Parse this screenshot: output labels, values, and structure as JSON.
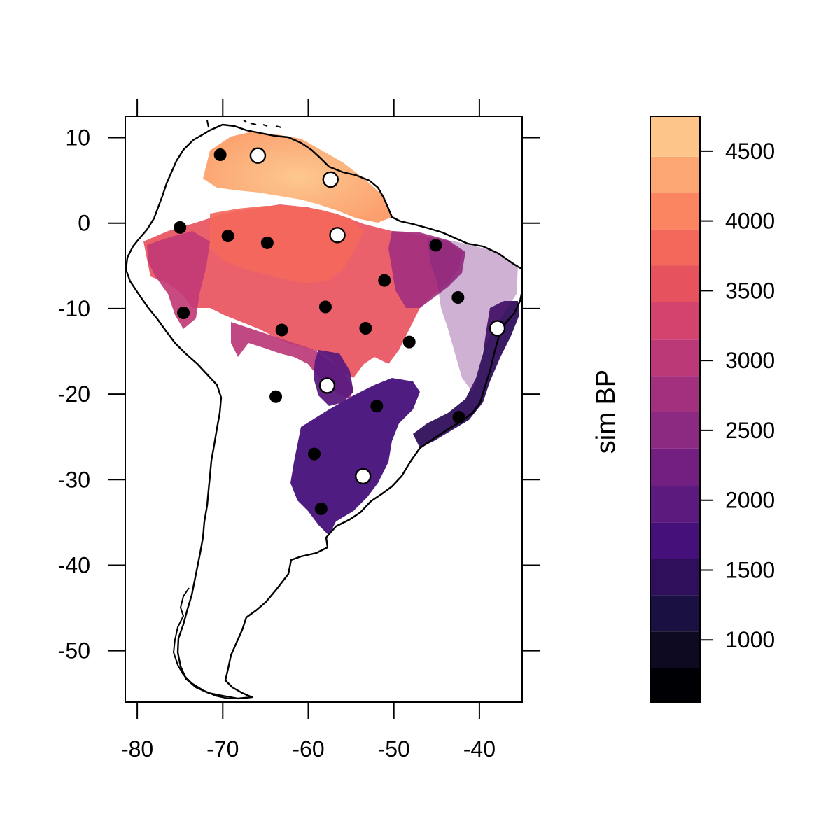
{
  "chart_data": {
    "type": "map",
    "legend_title": "sim BP",
    "x_ticks": [
      -80,
      -70,
      -60,
      -50,
      -40
    ],
    "y_ticks": [
      10,
      0,
      -10,
      -20,
      -30,
      -40,
      -50
    ],
    "x_range": [
      -81.4,
      -35.0
    ],
    "y_range": [
      -56.0,
      12.5
    ],
    "legend_ticks": [
      1000,
      1500,
      2000,
      2500,
      3000,
      3500,
      4000,
      4500
    ],
    "legend_range": [
      550,
      4750
    ],
    "legend_bin_edges": [
      550,
      800,
      1060,
      1320,
      1580,
      1840,
      2100,
      2370,
      2630,
      2890,
      3150,
      3420,
      3680,
      3940,
      4200,
      4460,
      4750
    ],
    "legend_colors": [
      "#000004",
      "#0d0a21",
      "#1b1042",
      "#2f0f5c",
      "#46107a",
      "#5c1a7e",
      "#721f81",
      "#8c2981",
      "#a3307e",
      "#bc3978",
      "#d3436e",
      "#e6535f",
      "#f4685c",
      "#fa8560",
      "#fca772",
      "#fdc589",
      "#fcfdbf"
    ],
    "gradient_colors": [
      {
        "v": 1800,
        "color": "#2c115f"
      },
      {
        "v": 2200,
        "color": "#6a1c81"
      },
      {
        "v": 2700,
        "color": "#b73779"
      },
      {
        "v": 3100,
        "color": "#d3436e"
      },
      {
        "v": 3500,
        "color": "#f1605d"
      },
      {
        "v": 3900,
        "color": "#fb8b62"
      },
      {
        "v": 4300,
        "color": "#fdb779"
      }
    ],
    "arrival_points": [
      {
        "lon": -65.9,
        "lat": 7.8,
        "value": 4300
      },
      {
        "lon": -57.3,
        "lat": 5.0,
        "value": 4100
      },
      {
        "lon": -56.5,
        "lat": -1.4,
        "value": 3850
      },
      {
        "lon": -65.0,
        "lat": -2.3,
        "value": 3650
      },
      {
        "lon": -45.1,
        "lat": -2.6,
        "value": 2600
      },
      {
        "lon": -51.0,
        "lat": -6.7,
        "value": 3200
      },
      {
        "lon": -58.0,
        "lat": -9.8,
        "value": 3350
      },
      {
        "lon": -63.0,
        "lat": -12.6,
        "value": 3050
      },
      {
        "lon": -53.3,
        "lat": -12.3,
        "value": 2950
      },
      {
        "lon": -48.5,
        "lat": -13.9,
        "value": 2700
      },
      {
        "lon": -74.5,
        "lat": -10.5,
        "value": 2850
      },
      {
        "lon": -75.1,
        "lat": -0.5,
        "value": 3350
      },
      {
        "lon": -69.6,
        "lat": -1.6,
        "value": 3450
      },
      {
        "lon": -57.7,
        "lat": -19.0,
        "value": 2750
      },
      {
        "lon": -52.0,
        "lat": -21.4,
        "value": 1900
      },
      {
        "lon": -59.3,
        "lat": -27.0,
        "value": 1900
      },
      {
        "lon": -53.6,
        "lat": -29.6,
        "value": 1850
      },
      {
        "lon": -58.5,
        "lat": -33.5,
        "value": 1900
      },
      {
        "lon": -42.4,
        "lat": -22.7,
        "value": 1750
      },
      {
        "lon": -38.1,
        "lat": -12.3,
        "value": 1850
      }
    ],
    "sites_filled": [
      {
        "lon": -70.3,
        "lat": 8.0
      },
      {
        "lon": -69.4,
        "lat": -1.5
      },
      {
        "lon": -75.0,
        "lat": -0.5
      },
      {
        "lon": -64.8,
        "lat": -2.3
      },
      {
        "lon": -74.6,
        "lat": -10.5
      },
      {
        "lon": -58.0,
        "lat": -9.8
      },
      {
        "lon": -63.1,
        "lat": -12.5
      },
      {
        "lon": -53.3,
        "lat": -12.3
      },
      {
        "lon": -51.1,
        "lat": -6.7
      },
      {
        "lon": -45.1,
        "lat": -2.6
      },
      {
        "lon": -42.5,
        "lat": -8.7
      },
      {
        "lon": -48.2,
        "lat": -13.9
      },
      {
        "lon": -63.8,
        "lat": -20.3
      },
      {
        "lon": -52.0,
        "lat": -21.4
      },
      {
        "lon": -42.4,
        "lat": -22.7
      },
      {
        "lon": -59.3,
        "lat": -27.0
      },
      {
        "lon": -58.5,
        "lat": -33.4
      }
    ],
    "sites_open": [
      {
        "lon": -65.9,
        "lat": 7.9
      },
      {
        "lon": -57.4,
        "lat": 5.1
      },
      {
        "lon": -56.6,
        "lat": -1.4
      },
      {
        "lon": -37.9,
        "lat": -12.3
      },
      {
        "lon": -57.8,
        "lat": -19.0
      },
      {
        "lon": -53.6,
        "lat": -29.6
      }
    ]
  }
}
